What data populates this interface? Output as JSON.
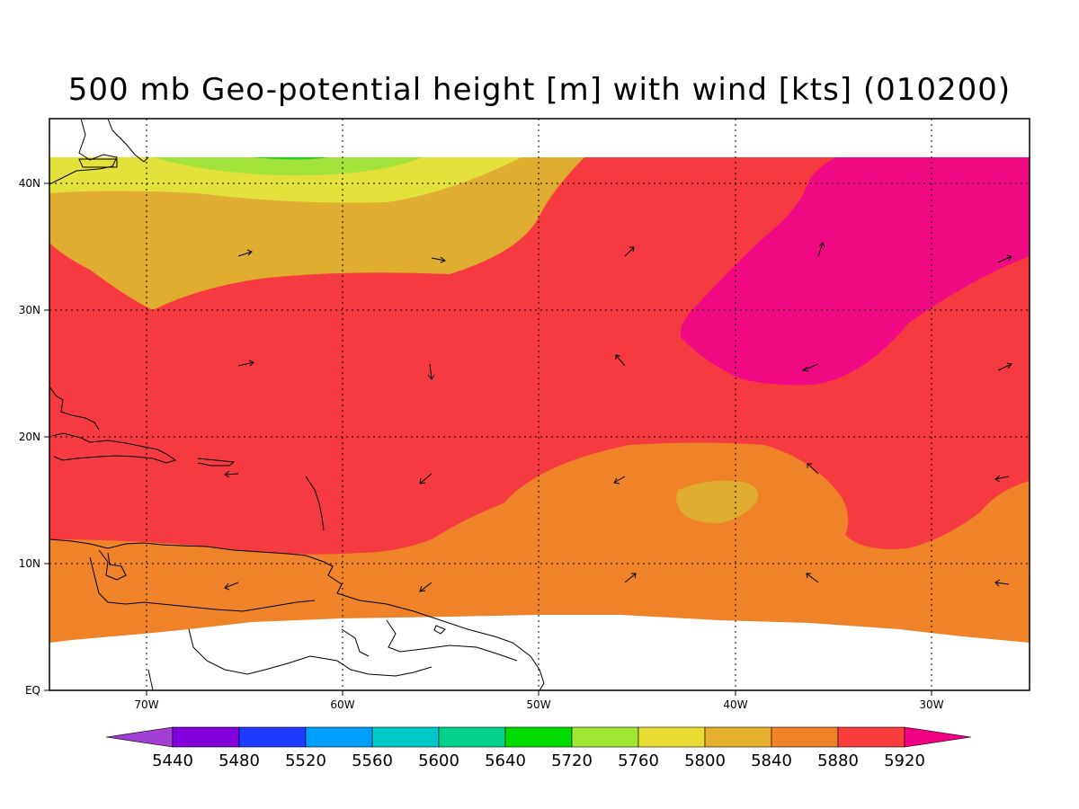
{
  "title": "500 mb Geo-potential height [m] with wind [kts] (010200)",
  "map": {
    "lon_ticks": [
      "70W",
      "60W",
      "50W",
      "40W",
      "30W"
    ],
    "lat_ticks": [
      "EQ",
      "10N",
      "20N",
      "30N",
      "40N"
    ],
    "contour_colors": {
      "5800": "#e2e23a",
      "5840": "#e1ad31",
      "5880": "#ef8329",
      "5920": "#f53b3f",
      "above": "#ef0a84",
      "5720": "#a3e23a",
      "5640": "#1fd21f"
    }
  },
  "colorbar": {
    "labels": [
      "5440",
      "5480",
      "5520",
      "5560",
      "5600",
      "5640",
      "5720",
      "5760",
      "5800",
      "5840",
      "5880",
      "5920"
    ],
    "colors": [
      "#a13fd2",
      "#8200dc",
      "#1e3cff",
      "#00a0ff",
      "#00c8c8",
      "#00d28c",
      "#00dc00",
      "#a0e632",
      "#e6dc32",
      "#e6af2d",
      "#f08228",
      "#fa3c3c",
      "#f00082"
    ]
  }
}
